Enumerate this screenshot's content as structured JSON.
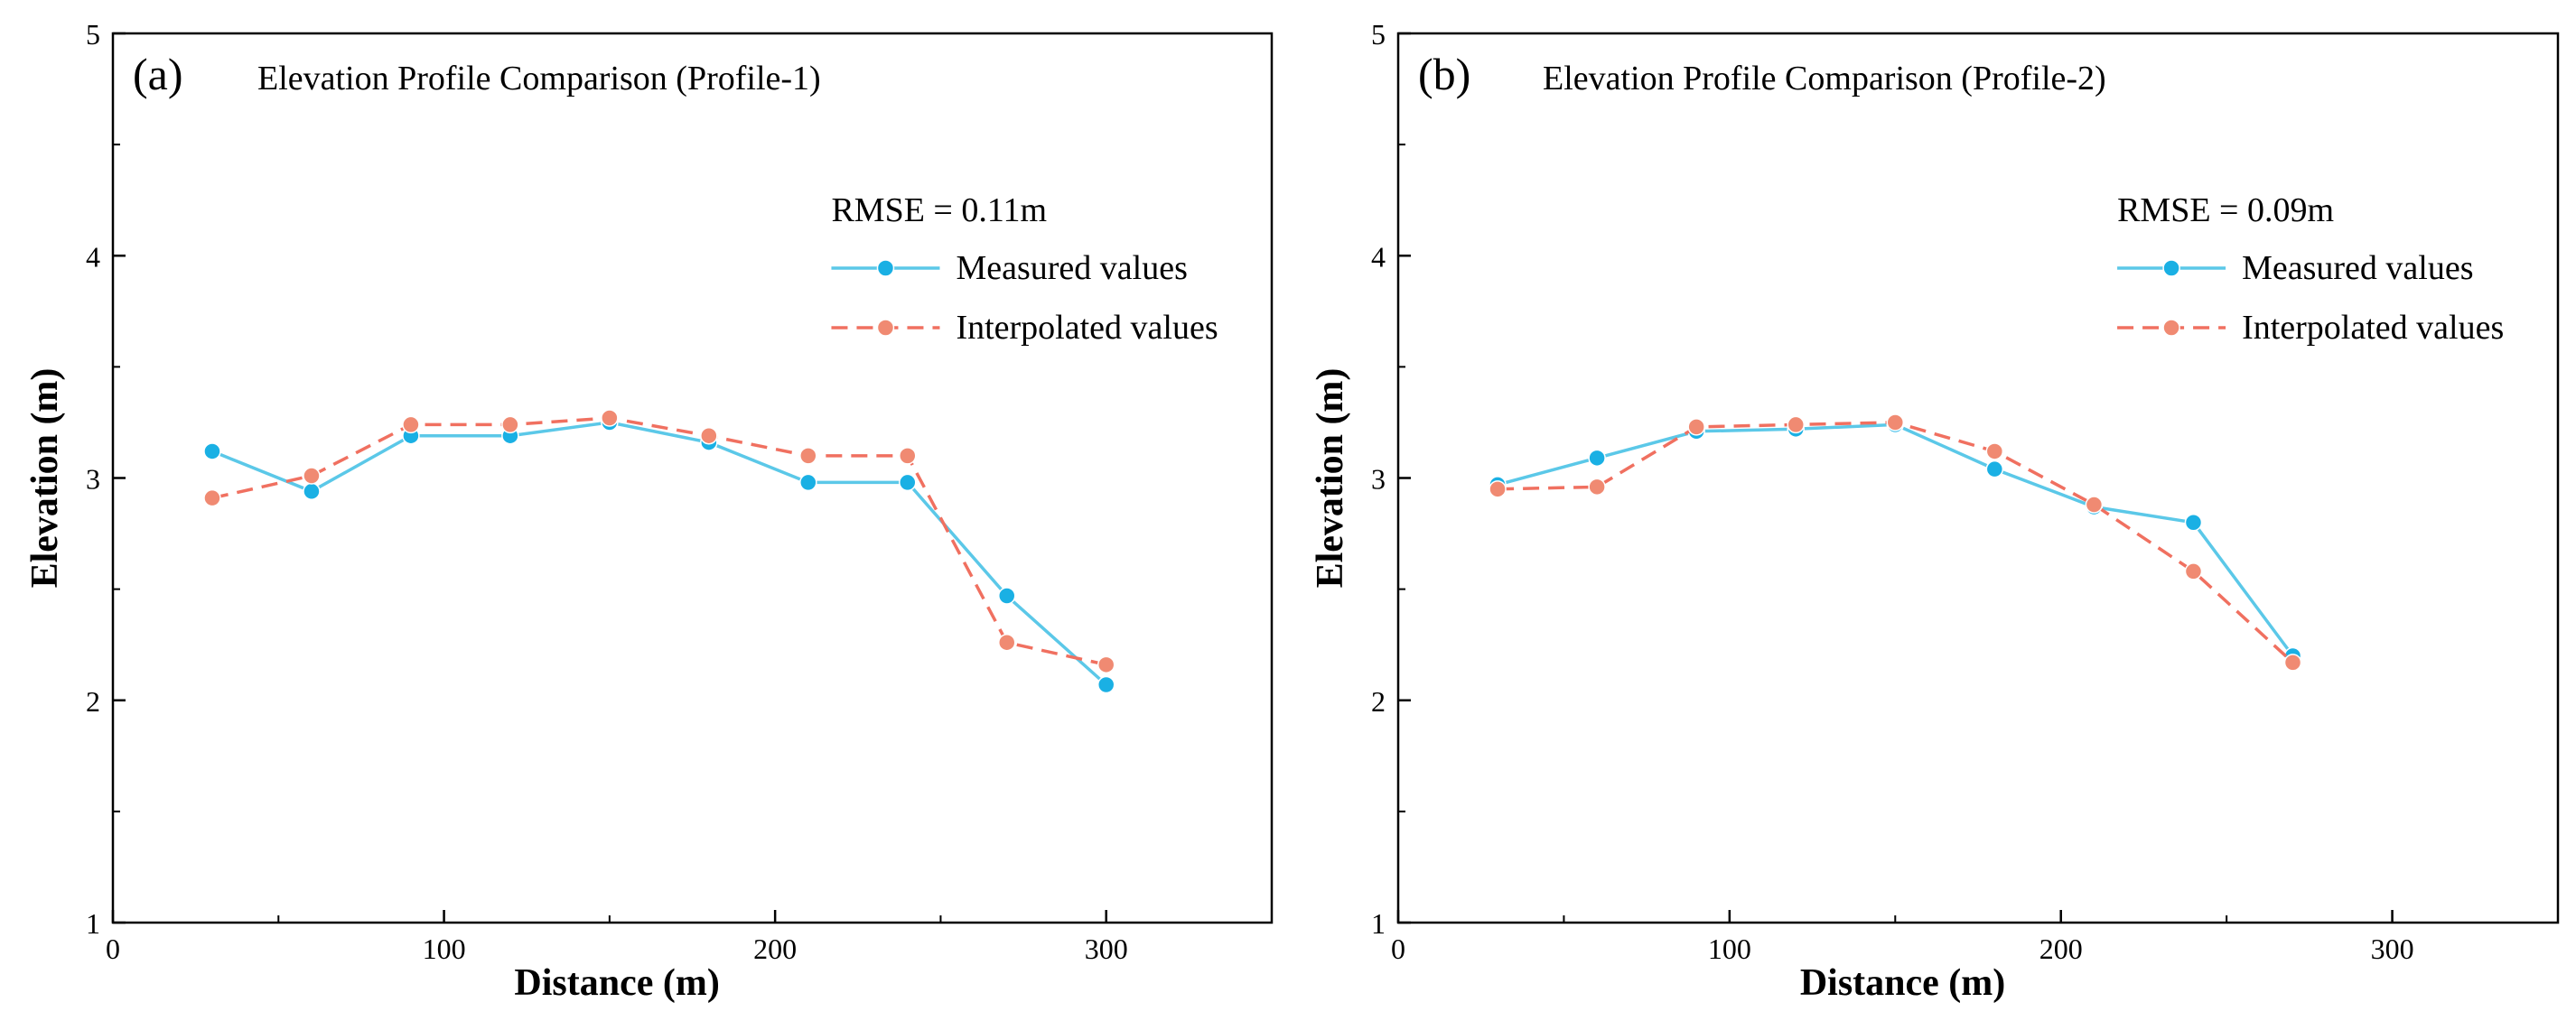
{
  "figure": {
    "panels": [
      "a",
      "b"
    ]
  },
  "chart_data": [
    {
      "type": "line",
      "panel_label": "(a)",
      "title": "Elevation Profile Comparison (Profile-1)",
      "xlabel": "Distance (m)",
      "ylabel": "Elevation (m)",
      "xlim": [
        0,
        350
      ],
      "ylim": [
        1,
        5
      ],
      "xticks": [
        0,
        100,
        200,
        300
      ],
      "yticks": [
        1,
        2,
        3,
        4,
        5
      ],
      "grid": false,
      "legend_position": "top-right",
      "annotation": "RMSE = 0.11m",
      "x": [
        30,
        60,
        90,
        120,
        150,
        180,
        210,
        240,
        270,
        300
      ],
      "series": [
        {
          "name": "Measured values",
          "style": "solid",
          "color": "#5bc8e8",
          "marker_color": "#1ab0e4",
          "values": [
            3.12,
            2.94,
            3.19,
            3.19,
            3.25,
            3.16,
            2.98,
            2.98,
            2.47,
            2.07
          ]
        },
        {
          "name": "Interpolated values",
          "style": "dashed",
          "color": "#f07060",
          "marker_color": "#f08a72",
          "values": [
            2.91,
            3.01,
            3.24,
            3.24,
            3.27,
            3.19,
            3.1,
            3.1,
            2.26,
            2.16
          ]
        }
      ]
    },
    {
      "type": "line",
      "panel_label": "(b)",
      "title": "Elevation Profile Comparison (Profile-2)",
      "xlabel": "Distance (m)",
      "ylabel": "Elevation (m)",
      "xlim": [
        0,
        350
      ],
      "ylim": [
        1,
        5
      ],
      "xticks": [
        0,
        100,
        200,
        300
      ],
      "yticks": [
        1,
        2,
        3,
        4,
        5
      ],
      "grid": false,
      "legend_position": "top-right",
      "annotation": "RMSE = 0.09m",
      "x": [
        30,
        60,
        90,
        120,
        150,
        180,
        210,
        240,
        270
      ],
      "series": [
        {
          "name": "Measured values",
          "style": "solid",
          "color": "#5bc8e8",
          "marker_color": "#1ab0e4",
          "values": [
            2.97,
            3.09,
            3.21,
            3.22,
            3.24,
            3.04,
            2.87,
            2.8,
            2.2
          ]
        },
        {
          "name": "Interpolated values",
          "style": "dashed",
          "color": "#f07060",
          "marker_color": "#f08a72",
          "values": [
            2.95,
            2.96,
            3.23,
            3.24,
            3.25,
            3.12,
            2.88,
            2.58,
            2.17
          ]
        }
      ]
    }
  ]
}
